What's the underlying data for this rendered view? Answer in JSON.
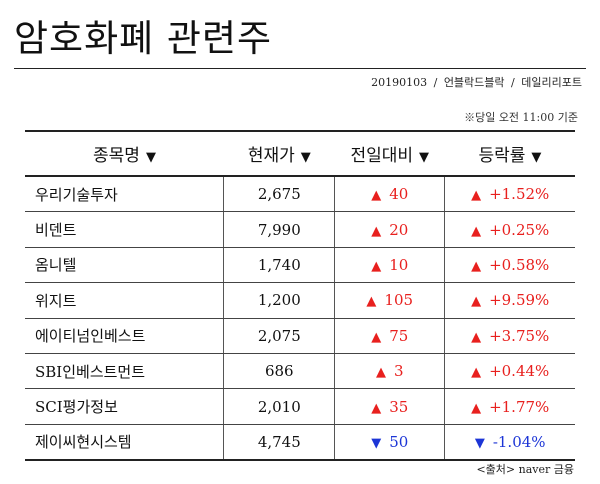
{
  "title": "암호화폐 관련주",
  "meta": {
    "date": "20190103",
    "separator": "/",
    "author": "언블락드블락",
    "publisher": "데일리리포트"
  },
  "note": "※당일 오전 11:00 기준",
  "columns": [
    {
      "label": "종목명",
      "arrow": "▼"
    },
    {
      "label": "현재가",
      "arrow": "▼"
    },
    {
      "label": "전일대비",
      "arrow": "▼"
    },
    {
      "label": "등락률",
      "arrow": "▼"
    }
  ],
  "rows": [
    {
      "name": "우리기술투자",
      "price": "2,675",
      "direction": "up",
      "tri": "▲",
      "change": "40",
      "rate": "+1.52%"
    },
    {
      "name": "비덴트",
      "price": "7,990",
      "direction": "up",
      "tri": "▲",
      "change": "20",
      "rate": "+0.25%"
    },
    {
      "name": "옴니텔",
      "price": "1,740",
      "direction": "up",
      "tri": "▲",
      "change": "10",
      "rate": "+0.58%"
    },
    {
      "name": "위지트",
      "price": "1,200",
      "direction": "up",
      "tri": "▲",
      "change": "105",
      "rate": "+9.59%"
    },
    {
      "name": "에이티넘인베스트",
      "price": "2,075",
      "direction": "up",
      "tri": "▲",
      "change": "75",
      "rate": "+3.75%"
    },
    {
      "name": "SBI인베스트먼트",
      "price": "686",
      "direction": "up",
      "tri": "▲",
      "change": "3",
      "rate": "+0.44%"
    },
    {
      "name": "SCI평가정보",
      "price": "2,010",
      "direction": "up",
      "tri": "▲",
      "change": "35",
      "rate": "+1.77%"
    },
    {
      "name": "제이씨현시스템",
      "price": "4,745",
      "direction": "down",
      "tri": "▼",
      "change": "50",
      "rate": "-1.04%"
    }
  ],
  "source": "<출처> naver 금융",
  "colors": {
    "up": "#e8201e",
    "down": "#1c35d6"
  }
}
